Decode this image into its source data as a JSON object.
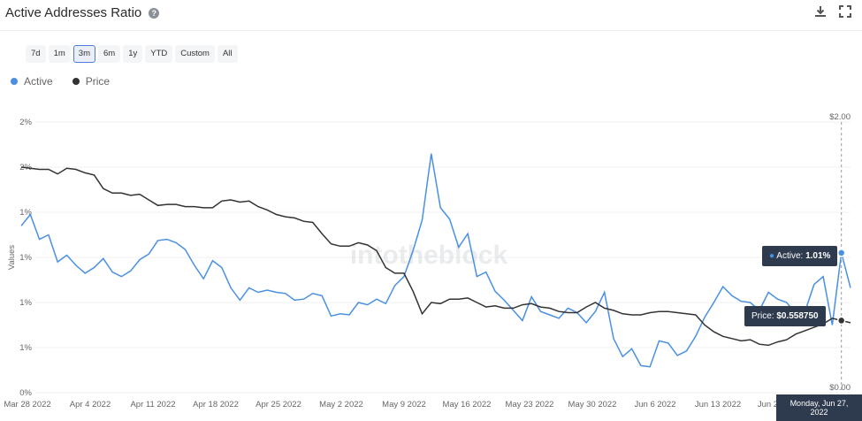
{
  "header": {
    "title": "Active Addresses Ratio",
    "help_icon": "?",
    "download_icon": "download-icon",
    "expand_icon": "expand-icon"
  },
  "ranges": [
    "7d",
    "1m",
    "3m",
    "6m",
    "1y",
    "YTD",
    "Custom",
    "All"
  ],
  "selected_range": "3m",
  "legend": [
    {
      "name": "Active",
      "color": "#4a90e2"
    },
    {
      "name": "Price",
      "color": "#333333"
    }
  ],
  "watermark": "intotheblock",
  "tooltip": {
    "active_prefix": "Active: ",
    "active_value": "1.01%",
    "price_prefix": "Price: ",
    "price_value": "$0.558750",
    "date": "Monday, Jun 27, 2022"
  },
  "chart_data": {
    "type": "line",
    "ylabel": "Values",
    "x_ticks": [
      "Mar 28 2022",
      "Apr 4 2022",
      "Apr 11 2022",
      "Apr 18 2022",
      "Apr 25 2022",
      "May 2 2022",
      "May 9 2022",
      "May 16 2022",
      "May 23 2022",
      "May 30 2022",
      "Jun 6 2022",
      "Jun 13 2022",
      "Jun 20 2022"
    ],
    "y_left_ticks": [
      "0%",
      "1%",
      "1%",
      "1%",
      "1%",
      "2%",
      "2%"
    ],
    "y_left_range": [
      0,
      2.4
    ],
    "y_right_ticks": [
      "$0.00",
      "$2.00"
    ],
    "y_right_range": [
      0,
      2.0
    ],
    "series": [
      {
        "name": "Active",
        "axis": "left",
        "color": "#4a90e2",
        "values": [
          1.48,
          1.58,
          1.36,
          1.4,
          1.16,
          1.22,
          1.13,
          1.06,
          1.11,
          1.19,
          1.07,
          1.03,
          1.08,
          1.18,
          1.23,
          1.35,
          1.36,
          1.33,
          1.27,
          1.13,
          1.01,
          1.17,
          1.11,
          0.93,
          0.82,
          0.93,
          0.89,
          0.91,
          0.89,
          0.88,
          0.82,
          0.83,
          0.88,
          0.86,
          0.68,
          0.7,
          0.69,
          0.8,
          0.78,
          0.83,
          0.79,
          0.95,
          1.03,
          1.26,
          1.53,
          2.12,
          1.64,
          1.54,
          1.29,
          1.41,
          1.03,
          1.07,
          0.9,
          0.82,
          0.73,
          0.64,
          0.85,
          0.72,
          0.69,
          0.66,
          0.75,
          0.71,
          0.62,
          0.72,
          0.89,
          0.48,
          0.32,
          0.39,
          0.24,
          0.23,
          0.46,
          0.44,
          0.33,
          0.37,
          0.5,
          0.67,
          0.8,
          0.94,
          0.86,
          0.81,
          0.8,
          0.73,
          0.89,
          0.83,
          0.8,
          0.7,
          0.72,
          0.96,
          1.03,
          0.6,
          1.24,
          0.93
        ]
      },
      {
        "name": "Price",
        "axis": "left",
        "color": "#333333",
        "values": [
          2.0,
          1.99,
          1.98,
          1.98,
          1.94,
          1.99,
          1.98,
          1.95,
          1.93,
          1.81,
          1.77,
          1.77,
          1.75,
          1.76,
          1.71,
          1.66,
          1.67,
          1.67,
          1.65,
          1.65,
          1.64,
          1.64,
          1.7,
          1.71,
          1.69,
          1.7,
          1.65,
          1.62,
          1.58,
          1.56,
          1.55,
          1.52,
          1.51,
          1.41,
          1.32,
          1.3,
          1.3,
          1.33,
          1.31,
          1.26,
          1.11,
          1.06,
          1.06,
          0.9,
          0.7,
          0.8,
          0.79,
          0.83,
          0.83,
          0.84,
          0.8,
          0.76,
          0.77,
          0.75,
          0.75,
          0.78,
          0.79,
          0.76,
          0.75,
          0.72,
          0.71,
          0.71,
          0.76,
          0.8,
          0.75,
          0.73,
          0.7,
          0.69,
          0.69,
          0.71,
          0.72,
          0.72,
          0.71,
          0.7,
          0.69,
          0.6,
          0.54,
          0.5,
          0.48,
          0.46,
          0.47,
          0.43,
          0.42,
          0.45,
          0.47,
          0.52,
          0.55,
          0.58,
          0.61,
          0.66,
          0.64,
          0.62
        ]
      }
    ]
  }
}
